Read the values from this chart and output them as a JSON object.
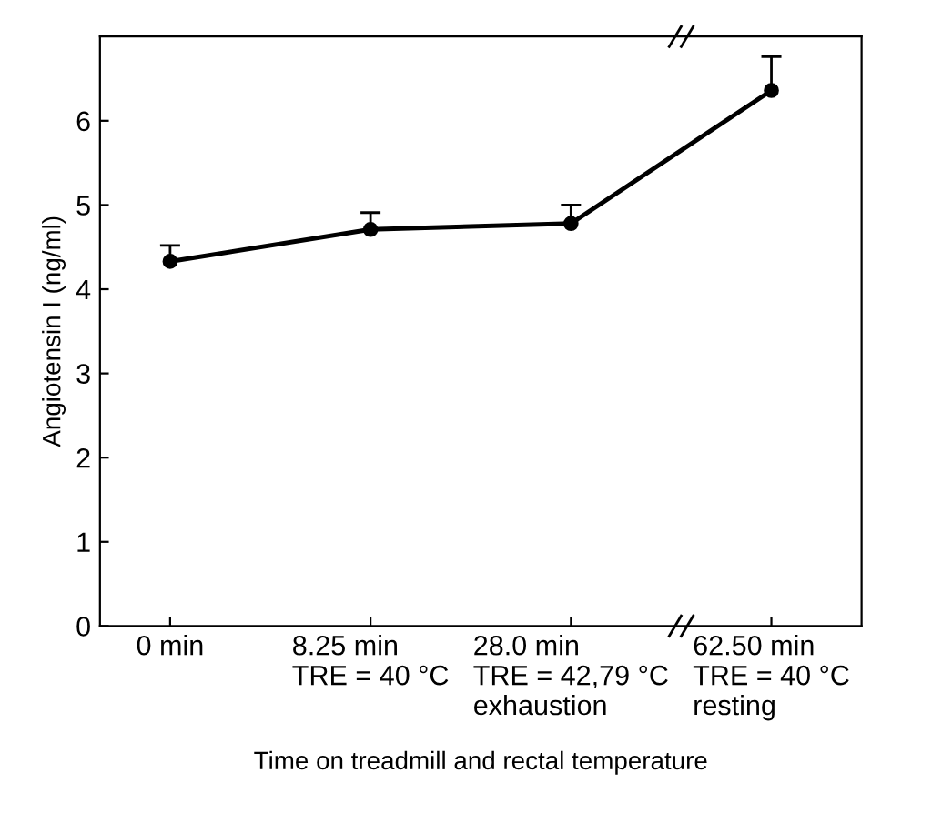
{
  "chart_data": {
    "type": "line",
    "ylabel": "Angiotensin I (ng/ml)",
    "xlabel": "Time on treadmill and rectal temperature",
    "categories": [
      "0 min",
      "8.25 min\nTRE = 40 °C",
      "28.0 min\nTRE = 42,79 °C\nexhaustion",
      "62.50 min\nTRE = 40 °C\nresting"
    ],
    "series": [
      {
        "color": "#000000",
        "values": [
          4.33,
          4.71,
          4.78,
          6.36
        ],
        "errors": [
          [
            4.33,
            4.52
          ],
          [
            4.71,
            4.91
          ],
          [
            4.78,
            5.0
          ],
          [
            6.36,
            6.76
          ]
        ]
      }
    ],
    "ylim": [
      0,
      7
    ],
    "yticks": [
      0,
      1,
      2,
      3,
      4,
      5,
      6
    ],
    "marker": "circle",
    "line_style": "solid",
    "grid": false,
    "legend": false
  }
}
